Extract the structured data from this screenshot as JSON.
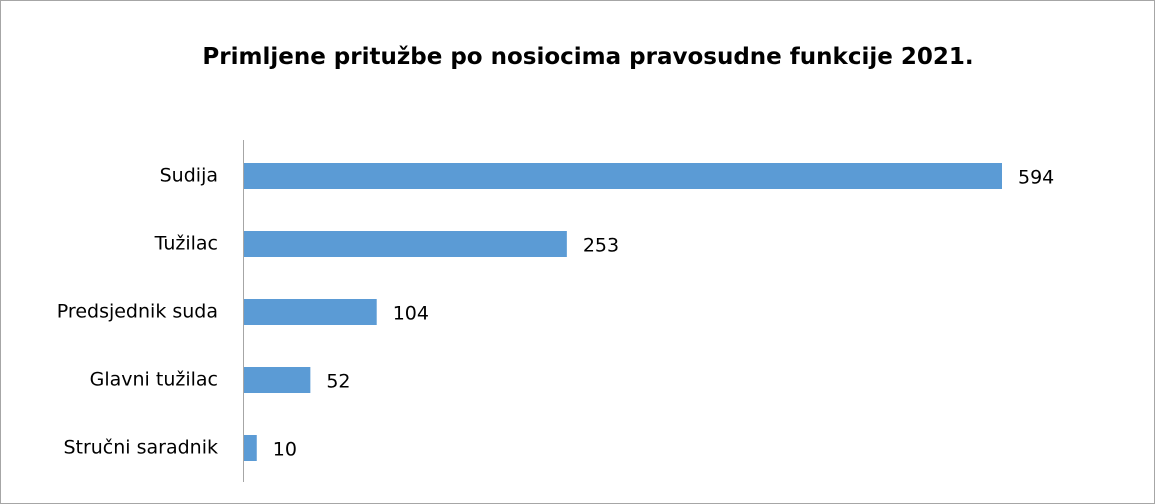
{
  "chart_data": {
    "type": "bar",
    "orientation": "horizontal",
    "title": "Primljene pritužbe po nosiocima pravosudne funkcije 2021.",
    "categories": [
      "Sudija",
      "Tužilac",
      "Predsjednik suda",
      "Glavni tužilac",
      "Stručni saradnik"
    ],
    "values": [
      594,
      253,
      104,
      52,
      10
    ],
    "color": "#5b9bd5"
  }
}
